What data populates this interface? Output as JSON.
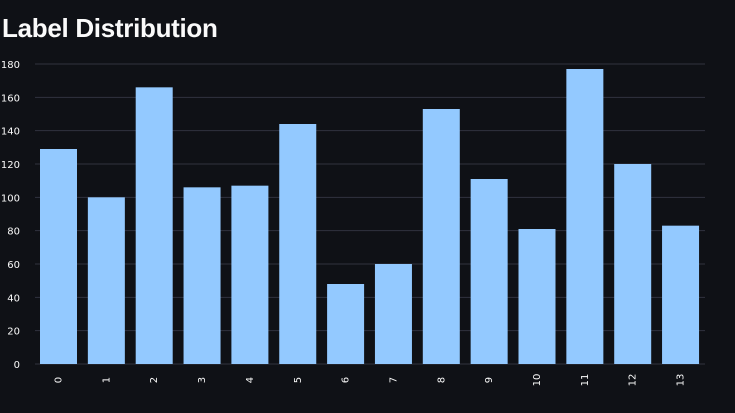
{
  "page": {
    "title": "Label Distribution"
  },
  "colors": {
    "background": "#0f1116",
    "bar": "#93c9ff",
    "grid": "#31333f",
    "text": "#fafafa"
  },
  "chart_data": {
    "type": "bar",
    "title": "Label Distribution",
    "xlabel": "",
    "ylabel": "",
    "categories": [
      "0",
      "1",
      "2",
      "3",
      "4",
      "5",
      "6",
      "7",
      "8",
      "9",
      "10",
      "11",
      "12",
      "13"
    ],
    "values": [
      129,
      100,
      166,
      106,
      107,
      144,
      48,
      60,
      153,
      111,
      81,
      177,
      120,
      83
    ],
    "ylim": [
      0,
      180
    ],
    "yticks": [
      0,
      20,
      40,
      60,
      80,
      100,
      120,
      140,
      160,
      180
    ],
    "grid": true,
    "legend": "none"
  }
}
